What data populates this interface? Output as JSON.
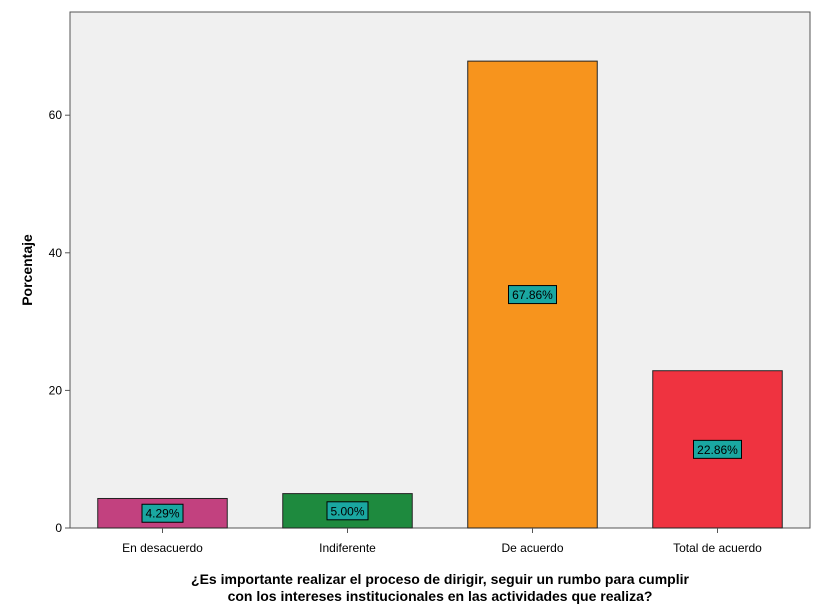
{
  "chart_data": {
    "type": "bar",
    "title": "",
    "xlabel_lines": [
      "¿Es importante realizar el proceso de dirigir, seguir un rumbo para cumplir",
      "con los intereses institucionales en las actividades que realiza?"
    ],
    "ylabel": "Porcentaje",
    "categories": [
      "En desacuerdo",
      "Indiferente",
      "De acuerdo",
      "Total de acuerdo"
    ],
    "values": [
      4.29,
      5.0,
      67.86,
      22.86
    ],
    "data_labels": [
      "4.29%",
      "5.00%",
      "67.86%",
      "22.86%"
    ],
    "colors": [
      "#c2417f",
      "#1e8a3e",
      "#f7941d",
      "#ef3340"
    ],
    "label_box_color": "#1aa7a1",
    "plot_background": "#f0f0f0",
    "ylim": [
      0,
      75
    ],
    "yticks": [
      0,
      20,
      40,
      60
    ],
    "grid": false,
    "legend": "none"
  }
}
